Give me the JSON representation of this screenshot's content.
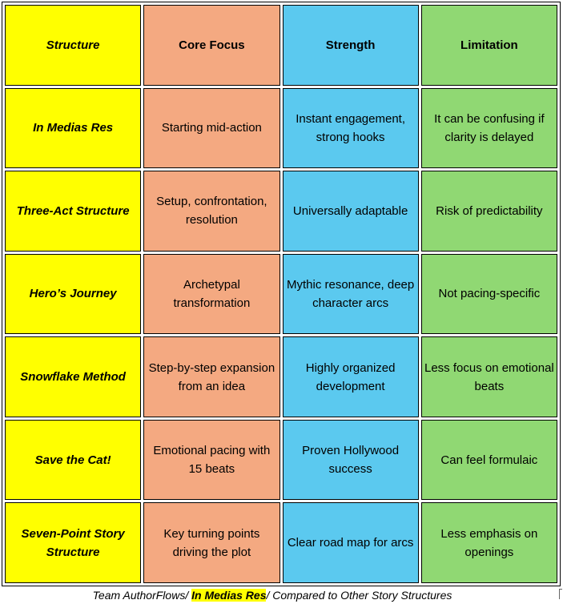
{
  "table": {
    "headers": [
      "Structure",
      "Core Focus",
      "Strength",
      "Limitation"
    ],
    "rows": [
      [
        "In Medias Res",
        "Starting mid-action",
        "Instant engagement, strong hooks",
        "It can be confusing if clarity is delayed"
      ],
      [
        "Three-Act Structure",
        "Setup, confrontation, resolution",
        "Universally adaptable",
        "Risk of predictability"
      ],
      [
        "Hero’s Journey",
        "Archetypal transformation",
        "Mythic resonance, deep character arcs",
        "Not pacing-specific"
      ],
      [
        "Snowflake Method",
        "Step-by-step expansion from an idea",
        "Highly organized development",
        "Less focus on emotional beats"
      ],
      [
        "Save the Cat!",
        "Emotional pacing with 15 beats",
        "Proven Hollywood success",
        "Can feel formulaic"
      ],
      [
        "Seven-Point Story Structure",
        "Key turning points driving the plot",
        "Clear road map for arcs",
        "Less emphasis on openings"
      ]
    ],
    "colors": {
      "structure": "#ffff00",
      "core_focus": "#f4a981",
      "strength": "#5bc9ef",
      "limitation": "#90d873"
    }
  },
  "caption": {
    "before": "Team AuthorFlows/ ",
    "highlight": "In Medias Res",
    "after": "/ Compared to Other Story Structures"
  }
}
